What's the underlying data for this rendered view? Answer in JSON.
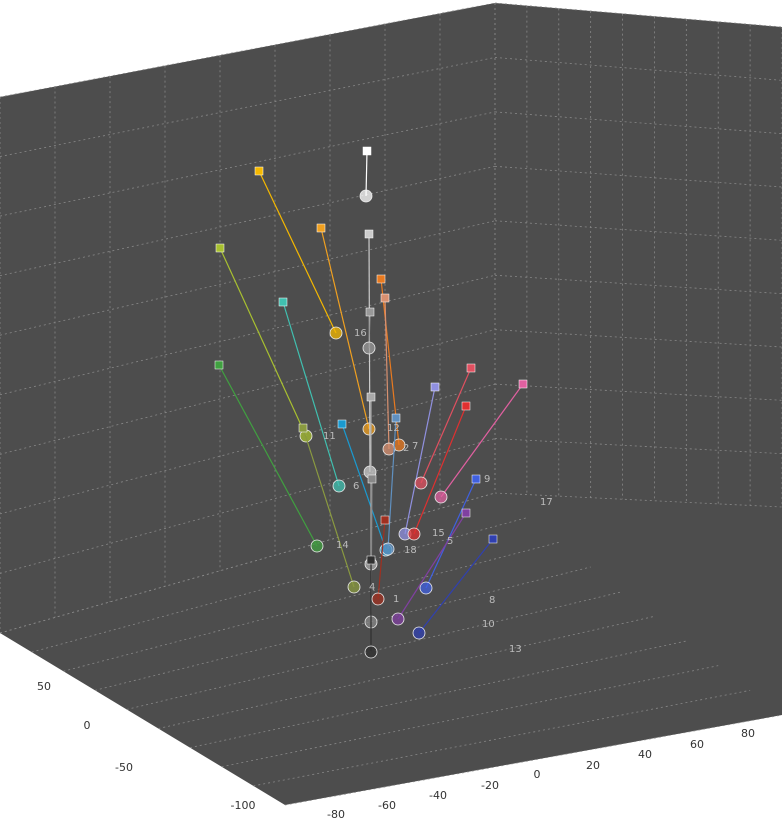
{
  "axes": {
    "left_ticks": [
      50,
      0,
      -50,
      -100
    ],
    "bottom_left_ticks": [
      -80,
      -60,
      -40,
      -20
    ],
    "bottom_right_ticks": [
      0,
      20,
      40,
      60,
      80
    ]
  },
  "point_labels": [
    "16",
    "12",
    "7",
    "2",
    "11",
    "6",
    "14",
    "18",
    "15",
    "9",
    "17",
    "5",
    "4",
    "1",
    "8",
    "10",
    "13"
  ]
}
